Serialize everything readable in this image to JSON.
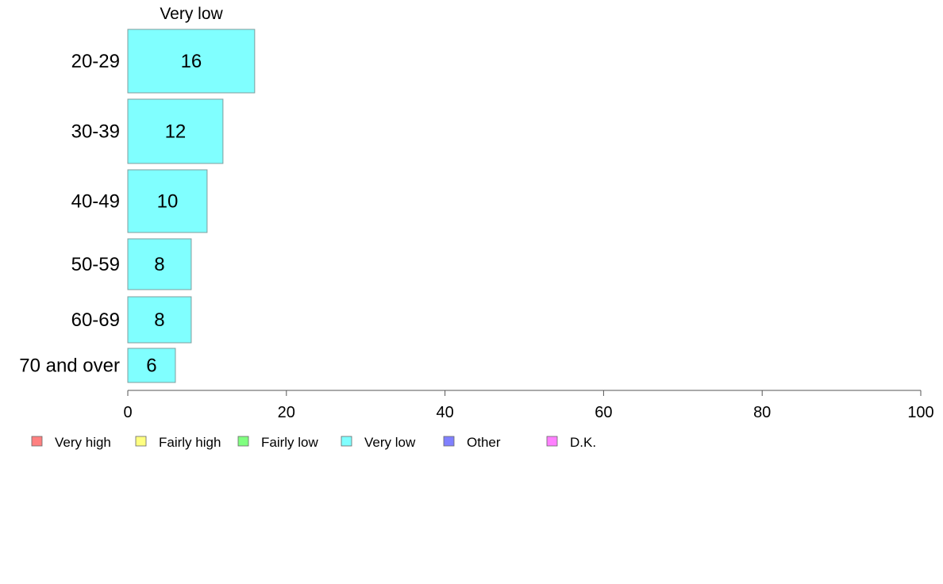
{
  "chart_data": {
    "type": "bar",
    "orientation": "horizontal",
    "stacked": true,
    "panel_title": "Very low",
    "categories": [
      "20-29",
      "30-39",
      "40-49",
      "50-59",
      "60-69",
      "70 and over"
    ],
    "series": [
      {
        "name": "Very low",
        "color": "#80FFFF",
        "values": [
          16,
          12,
          10,
          8,
          8,
          6
        ],
        "labels": [
          "16",
          "12",
          "10",
          "8",
          "8",
          "6"
        ]
      }
    ],
    "xlim": [
      0,
      100
    ],
    "xticks": [
      0,
      20,
      40,
      60,
      80,
      100
    ],
    "xtick_labels": [
      "0",
      "20",
      "40",
      "60",
      "80",
      "100"
    ],
    "grid": false,
    "legend": {
      "placement": "bottom-left",
      "items": [
        {
          "label": "Very high",
          "color": "#FF8080"
        },
        {
          "label": "Fairly high",
          "color": "#FFFF80"
        },
        {
          "label": "Fairly low",
          "color": "#80FF80"
        },
        {
          "label": "Very low",
          "color": "#80FFFF"
        },
        {
          "label": "Other",
          "color": "#8080FF"
        },
        {
          "label": "D.K.",
          "color": "#FF80FF"
        }
      ]
    }
  }
}
